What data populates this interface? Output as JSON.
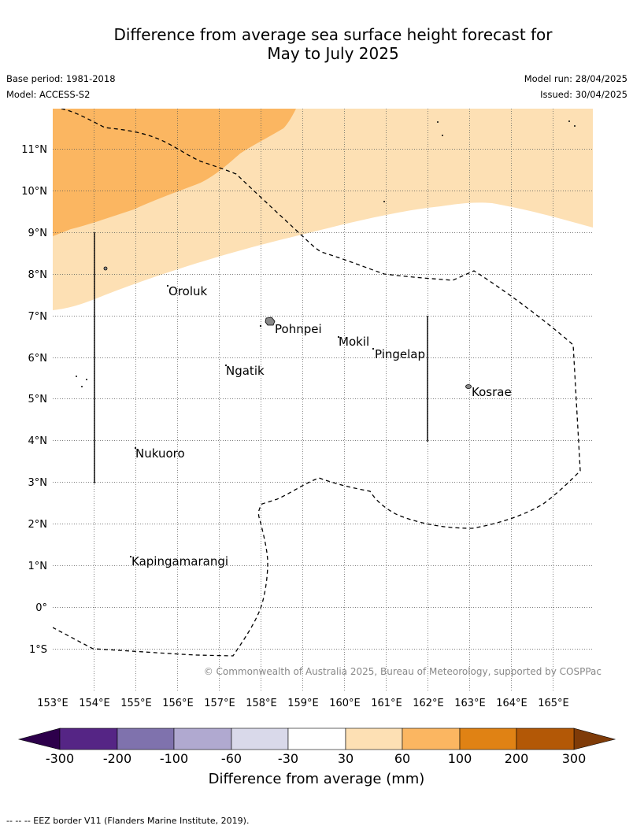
{
  "title": {
    "line1": "Difference from average sea surface height forecast for",
    "line2": "May to July 2025"
  },
  "meta": {
    "base_period": "Base period: 1981-2018",
    "model": "Model: ACCESS-S2",
    "model_run": "Model run: 28/04/2025",
    "issued": "Issued: 30/04/2025"
  },
  "map": {
    "lon_range": [
      153,
      166
    ],
    "lat_range": [
      -2,
      12
    ],
    "lon_ticks": [
      "153°E",
      "154°E",
      "155°E",
      "156°E",
      "157°E",
      "158°E",
      "159°E",
      "160°E",
      "161°E",
      "162°E",
      "163°E",
      "164°E",
      "165°E"
    ],
    "lat_ticks": [
      "11°N",
      "10°N",
      "9°N",
      "8°N",
      "7°N",
      "6°N",
      "5°N",
      "4°N",
      "3°N",
      "2°N",
      "1°N",
      "0°",
      "1°S"
    ],
    "copyright": "© Commonwealth of Australia 2025, Bureau of Meteorology, supported by COSPPac",
    "places": [
      {
        "name": "Oroluk"
      },
      {
        "name": "Pohnpei"
      },
      {
        "name": "Mokil"
      },
      {
        "name": "Pingelap"
      },
      {
        "name": "Ngatik"
      },
      {
        "name": "Kosrae"
      },
      {
        "name": "Nukuoro"
      },
      {
        "name": "Kapingamarangi"
      }
    ],
    "fill_colors": {
      "band_30_60": "#fde0b4",
      "band_60_100": "#fbb661"
    }
  },
  "colorbar": {
    "label": "Difference from average (mm)",
    "ticks": [
      "-300",
      "-200",
      "-100",
      "-60",
      "-30",
      "30",
      "60",
      "100",
      "200",
      "300"
    ],
    "colors": [
      "#552585",
      "#7f72ad",
      "#b0a9d0",
      "#d9d9ea",
      "#ffffff",
      "#fde0b4",
      "#fbb661",
      "#e08214",
      "#b35806"
    ],
    "under_color": "#2d004b",
    "over_color": "#7f3b08"
  },
  "footer": "--  --  -- EEZ border V11 (Flanders Marine Institute, 2019)."
}
